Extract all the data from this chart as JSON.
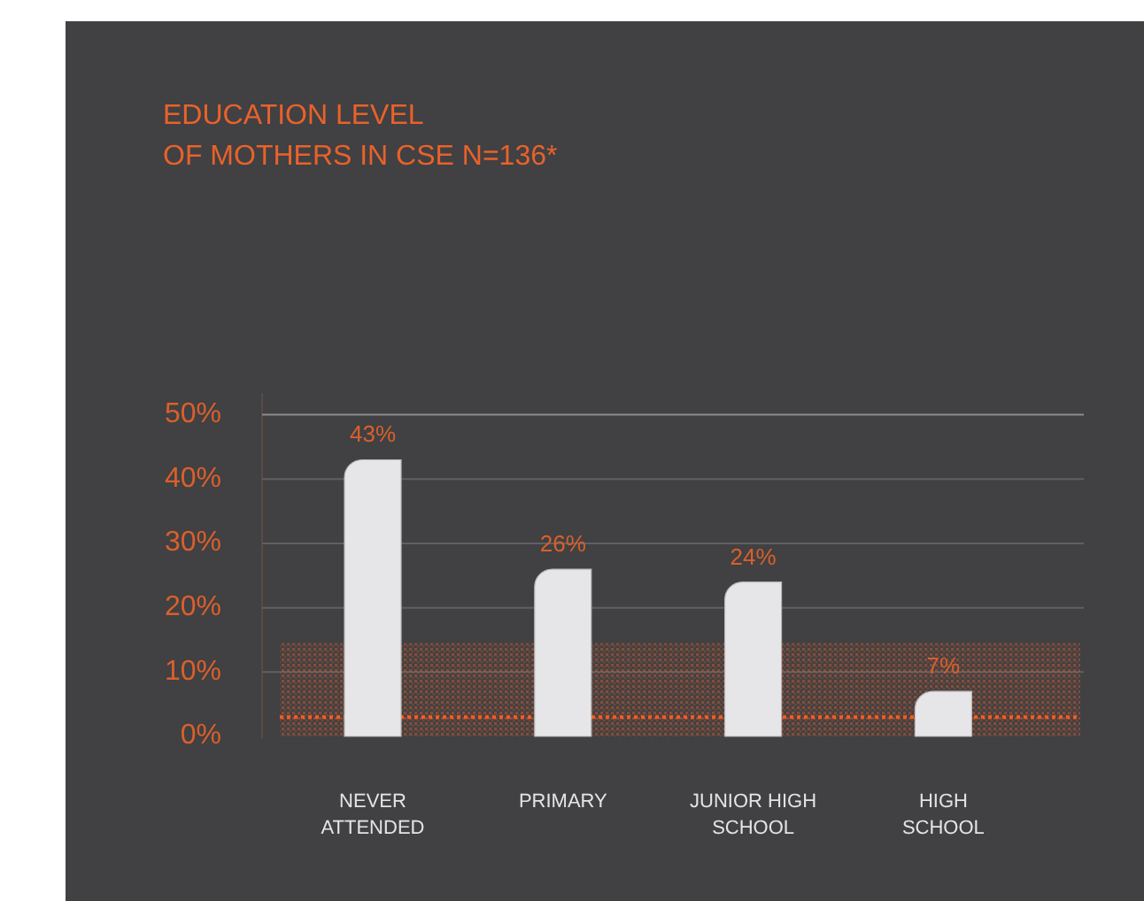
{
  "chart_data": {
    "type": "bar",
    "title": "EDUCATION LEVEL\nOF MOTHERS IN CSE N=136*",
    "categories": [
      "NEVER ATTENDED",
      "PRIMARY",
      "JUNIOR HIGH SCHOOL",
      "HIGH SCHOOL"
    ],
    "values": [
      43,
      26,
      24,
      7
    ],
    "value_labels": [
      "43%",
      "26%",
      "24%",
      "7%"
    ],
    "color": "#e6e6e8",
    "ylim": [
      0,
      50
    ],
    "yticks": [
      {
        "value": 0,
        "label": "0%"
      },
      {
        "value": 10,
        "label": "10%"
      },
      {
        "value": 20,
        "label": "20%"
      },
      {
        "value": 30,
        "label": "30%"
      },
      {
        "value": 40,
        "label": "40%"
      },
      {
        "value": 50,
        "label": "50%"
      }
    ],
    "grid": "y",
    "bands": [
      {
        "axis": "y",
        "from": 0,
        "to": 14.5,
        "color": "#e8622a"
      }
    ],
    "ref_lines": [
      {
        "axis": "y",
        "value": 3,
        "color": "#ff5a1f",
        "line_style": "dotted"
      }
    ]
  }
}
